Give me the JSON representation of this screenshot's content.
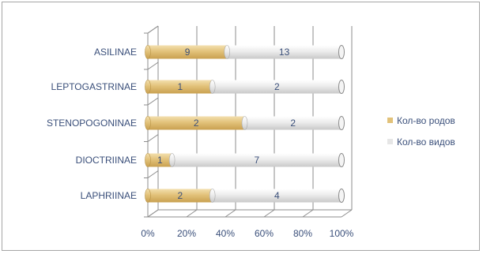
{
  "chart_data": {
    "type": "bar",
    "orientation": "horizontal",
    "stacking": "percent",
    "categories": [
      "ASILINAE",
      "LEPTOGASTRINAE",
      "STENOPOGONINAE",
      "DIOCTRIINAE",
      "LAPHRIINAE"
    ],
    "series": [
      {
        "name": "Кол-во родов",
        "values": [
          9,
          1,
          2,
          1,
          2
        ]
      },
      {
        "name": "Кол-во видов",
        "values": [
          13,
          2,
          2,
          7,
          4
        ]
      }
    ],
    "xticks": [
      "0%",
      "20%",
      "40%",
      "60%",
      "80%",
      "100%"
    ],
    "xlim": [
      0,
      100
    ],
    "grid": true,
    "legend_position": "right",
    "colors": {
      "series": [
        "#e2c27a",
        "#e6e6e6"
      ],
      "series_dark": [
        "#b89345",
        "#a9a9a9"
      ],
      "text": "#3a4f7a",
      "grid": "#8c8c8c"
    }
  }
}
